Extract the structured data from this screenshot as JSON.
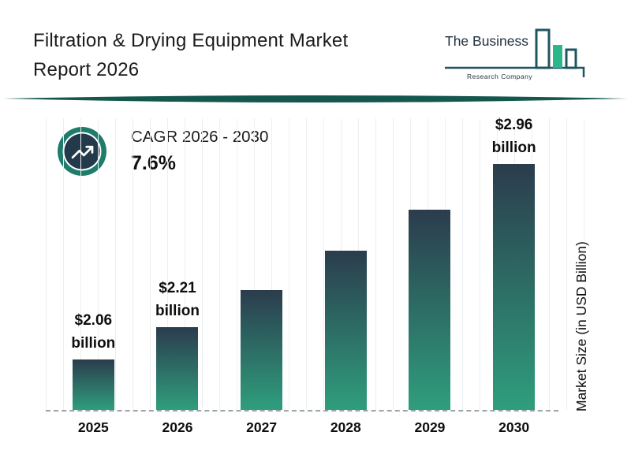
{
  "header": {
    "title_line1": "Filtration & Drying Equipment Market",
    "title_line2": "Report 2026",
    "logo": {
      "line1": "The Business",
      "line2": "Research Company"
    }
  },
  "cagr": {
    "label": "CAGR 2026 - 2030",
    "value": "7.6%"
  },
  "colors": {
    "accent_teal": "#14574d",
    "logo_outline": "#1f5561",
    "logo_fill": "#2bb68b",
    "bar_top": "#2b3c4d",
    "bar_bottom": "#2f9e7d",
    "icon_ring": "#1d7c6a",
    "icon_circle": "#233a4a"
  },
  "chart_data": {
    "type": "bar",
    "title": "Filtration & Drying Equipment Market Size",
    "categories": [
      "2025",
      "2026",
      "2027",
      "2028",
      "2029",
      "2030"
    ],
    "values": [
      2.06,
      2.21,
      2.38,
      2.56,
      2.75,
      2.96
    ],
    "value_labels": [
      "$2.06 billion",
      "$2.21 billion",
      null,
      null,
      null,
      "$2.96 billion"
    ],
    "unit": "USD billion",
    "ylabel": "Market Size (in USD Billion)",
    "xlabel": "",
    "ylim": [
      1.83,
      2.96
    ],
    "grid": "vertical-light",
    "legend": "none"
  }
}
